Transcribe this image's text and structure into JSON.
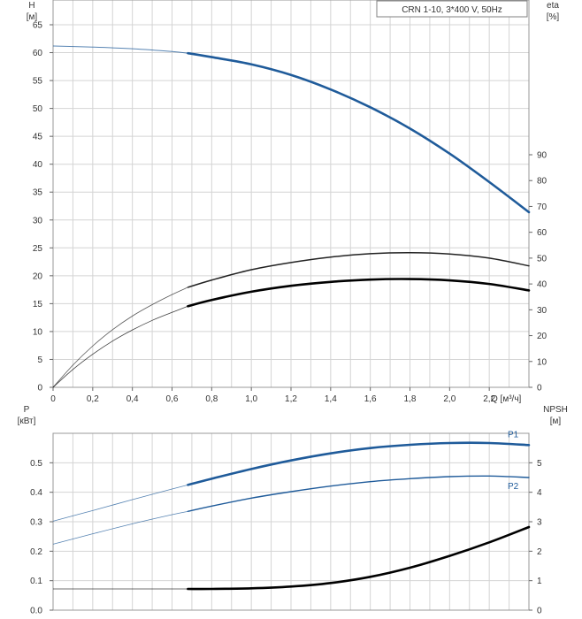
{
  "chart_data": [
    {
      "type": "line",
      "title": "CRN 1-10, 3*400 V, 50Hz",
      "y_left": {
        "title": "H",
        "unit": "[м]",
        "range": [
          0,
          65
        ],
        "ticks": [
          "0",
          "5",
          "10",
          "15",
          "20",
          "25",
          "30",
          "35",
          "40",
          "45",
          "50",
          "55",
          "60",
          "65"
        ]
      },
      "y_right": {
        "title": "eta",
        "unit": "[%]",
        "range": [
          0,
          90
        ],
        "ticks": [
          "0",
          "10",
          "20",
          "30",
          "40",
          "50",
          "60",
          "70",
          "80",
          "90"
        ]
      },
      "x": {
        "label": "Q [м³/ч]",
        "range": [
          0,
          2.4
        ],
        "ticks": [
          "0",
          "0,2",
          "0,4",
          "0,6",
          "0,8",
          "1,0",
          "1,2",
          "1,4",
          "1,6",
          "1,8",
          "2,0",
          "2,2"
        ]
      },
      "grid": true,
      "series": [
        {
          "axis": "left",
          "color": "#1f5b9a",
          "lead_x": [
            0,
            0.2,
            0.4,
            0.6,
            0.68
          ],
          "lead_y": [
            61.2,
            61.0,
            60.7,
            60.2,
            59.9
          ],
          "x": [
            0.68,
            0.8,
            1.0,
            1.2,
            1.4,
            1.6,
            1.8,
            2.0,
            2.2,
            2.4
          ],
          "y": [
            59.9,
            59.2,
            57.9,
            56.0,
            53.4,
            50.2,
            46.4,
            41.9,
            36.8,
            31.4
          ]
        },
        {
          "axis": "right",
          "color": "#222222",
          "lead_x": [
            0,
            0.1,
            0.2,
            0.3,
            0.4,
            0.5,
            0.6,
            0.68
          ],
          "lead_y": [
            0,
            8.6,
            16.0,
            22.3,
            27.6,
            32.0,
            35.9,
            38.7
          ],
          "x": [
            0.68,
            0.8,
            1.0,
            1.2,
            1.4,
            1.6,
            1.8,
            2.0,
            2.2,
            2.4
          ],
          "y": [
            38.7,
            41.5,
            45.5,
            48.3,
            50.4,
            51.7,
            52.1,
            51.6,
            50.0,
            47.0
          ]
        },
        {
          "axis": "right",
          "color": "#000000",
          "lead_x": [
            0,
            0.1,
            0.2,
            0.3,
            0.4,
            0.5,
            0.6,
            0.68
          ],
          "lead_y": [
            0,
            6.9,
            12.8,
            17.9,
            22.2,
            25.9,
            29.0,
            31.4
          ],
          "x": [
            0.68,
            0.8,
            1.0,
            1.2,
            1.4,
            1.6,
            1.8,
            2.0,
            2.2,
            2.4
          ],
          "y": [
            31.4,
            33.8,
            37.0,
            39.3,
            40.8,
            41.7,
            41.9,
            41.4,
            40.0,
            37.5
          ]
        }
      ]
    },
    {
      "type": "line",
      "y_left": {
        "title": "P",
        "unit": "[кВт]",
        "range": [
          0,
          0.6
        ],
        "ticks": [
          "0.0",
          "0.1",
          "0.2",
          "0.3",
          "0.4",
          "0.5"
        ]
      },
      "y_right": {
        "title": "NPSH",
        "unit": "[м]",
        "range": [
          0,
          6
        ],
        "ticks": [
          "0",
          "1",
          "2",
          "3",
          "4",
          "5"
        ]
      },
      "x": {
        "range": [
          0,
          2.4
        ]
      },
      "grid": true,
      "series": [
        {
          "name": "P1",
          "axis": "left",
          "color": "#1f5b9a",
          "lead_x": [
            0,
            0.2,
            0.4,
            0.6,
            0.68
          ],
          "lead_y": [
            0.302,
            0.338,
            0.375,
            0.411,
            0.425
          ],
          "x": [
            0.68,
            0.8,
            1.0,
            1.2,
            1.4,
            1.6,
            1.8,
            2.0,
            2.2,
            2.4
          ],
          "y": [
            0.425,
            0.446,
            0.479,
            0.508,
            0.532,
            0.55,
            0.561,
            0.567,
            0.567,
            0.56
          ]
        },
        {
          "name": "P2",
          "axis": "left",
          "color": "#1f5b9a",
          "lead_x": [
            0,
            0.2,
            0.4,
            0.6,
            0.68
          ],
          "lead_y": [
            0.224,
            0.259,
            0.293,
            0.324,
            0.335
          ],
          "x": [
            0.68,
            0.8,
            1.0,
            1.2,
            1.4,
            1.6,
            1.8,
            2.0,
            2.2,
            2.4
          ],
          "y": [
            0.335,
            0.353,
            0.38,
            0.402,
            0.421,
            0.436,
            0.446,
            0.453,
            0.455,
            0.45
          ]
        },
        {
          "axis": "right",
          "color": "#000000",
          "lead_x": [
            0,
            0.2,
            0.4,
            0.6,
            0.68
          ],
          "lead_y": [
            0.72,
            0.72,
            0.72,
            0.72,
            0.72
          ],
          "x": [
            0.68,
            0.8,
            1.0,
            1.2,
            1.4,
            1.6,
            1.8,
            2.0,
            2.2,
            2.4
          ],
          "y": [
            0.72,
            0.72,
            0.74,
            0.8,
            0.92,
            1.13,
            1.44,
            1.84,
            2.3,
            2.82
          ]
        }
      ]
    }
  ]
}
